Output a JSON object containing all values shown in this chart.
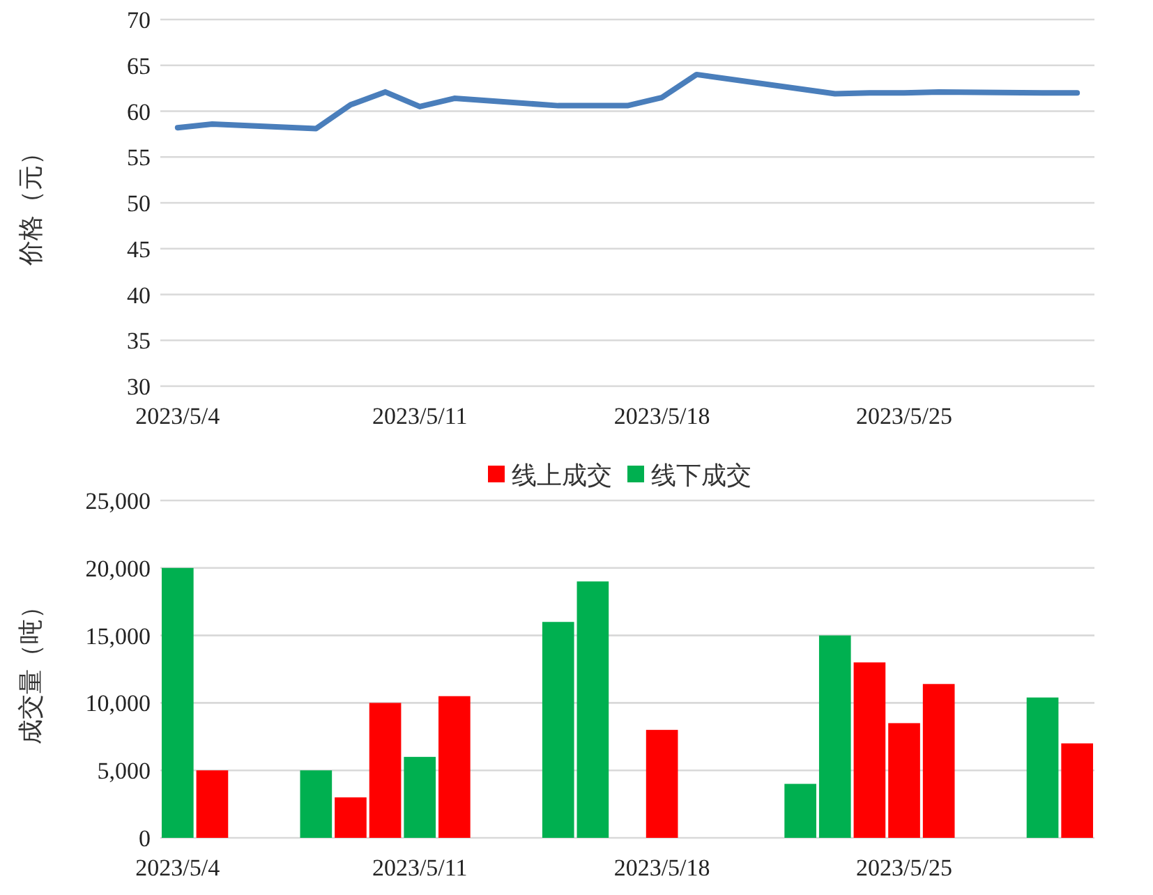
{
  "chart_data": [
    {
      "type": "line",
      "ylabel": "价格（元）",
      "x": [
        "2023-05-04",
        "2023-05-05",
        "2023-05-08",
        "2023-05-09",
        "2023-05-10",
        "2023-05-11",
        "2023-05-12",
        "2023-05-15",
        "2023-05-16",
        "2023-05-17",
        "2023-05-18",
        "2023-05-19",
        "2023-05-23",
        "2023-05-24",
        "2023-05-25",
        "2023-05-26",
        "2023-05-29",
        "2023-05-30"
      ],
      "series": [
        {
          "color": "#4a7ebb",
          "values": [
            58.2,
            58.6,
            58.1,
            60.7,
            62.1,
            60.5,
            61.4,
            60.6,
            60.6,
            60.6,
            61.5,
            64.0,
            61.9,
            62.0,
            62.0,
            62.1,
            62.0,
            62.0
          ]
        }
      ],
      "xlim": [
        "2023-05-03T12:00",
        "2023-05-30T12:00"
      ],
      "xticks": [
        {
          "value": "2023-05-04",
          "label": "2023/5/4"
        },
        {
          "value": "2023-05-11",
          "label": "2023/5/11"
        },
        {
          "value": "2023-05-18",
          "label": "2023/5/18"
        },
        {
          "value": "2023-05-25",
          "label": "2023/5/25"
        }
      ],
      "ylim": [
        30,
        70
      ],
      "yticks": [
        30,
        35,
        40,
        45,
        50,
        55,
        60,
        65,
        70
      ],
      "grid": "y"
    },
    {
      "type": "bar",
      "ylabel": "成交量（吨）",
      "series": [
        {
          "name": "线上成交",
          "color": "#ff0000",
          "x": [
            "2023-05-05",
            "2023-05-09",
            "2023-05-10",
            "2023-05-12",
            "2023-05-18",
            "2023-05-24",
            "2023-05-25",
            "2023-05-26",
            "2023-05-30"
          ],
          "values": [
            5000,
            3000,
            10000,
            10500,
            8000,
            13000,
            8500,
            11400,
            7000
          ]
        },
        {
          "name": "线下成交",
          "color": "#00b050",
          "x": [
            "2023-05-04",
            "2023-05-08",
            "2023-05-11",
            "2023-05-15",
            "2023-05-16",
            "2023-05-22",
            "2023-05-23",
            "2023-05-29"
          ],
          "values": [
            20000,
            5000,
            6000,
            16000,
            19000,
            4000,
            15000,
            10400
          ]
        }
      ],
      "xlim": [
        "2023-05-03T12:00",
        "2023-05-30T12:00"
      ],
      "xticks": [
        {
          "value": "2023-05-04",
          "label": "2023/5/4"
        },
        {
          "value": "2023-05-11",
          "label": "2023/5/11"
        },
        {
          "value": "2023-05-18",
          "label": "2023/5/18"
        },
        {
          "value": "2023-05-25",
          "label": "2023/5/25"
        }
      ],
      "ylim": [
        0,
        25000
      ],
      "yticks": [
        {
          "value": 0,
          "label": "0"
        },
        {
          "value": 5000,
          "label": "5,000"
        },
        {
          "value": 10000,
          "label": "10,000"
        },
        {
          "value": 15000,
          "label": "15,000"
        },
        {
          "value": 20000,
          "label": "20,000"
        },
        {
          "value": 25000,
          "label": "25,000"
        }
      ],
      "grid": "y",
      "legend": "top"
    }
  ]
}
